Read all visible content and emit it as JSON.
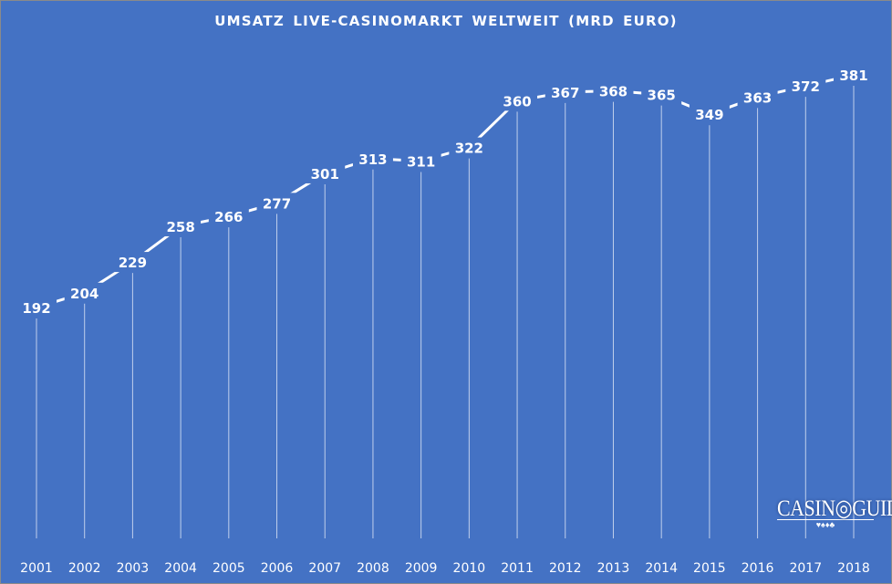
{
  "chart_data": {
    "type": "line",
    "title": "UMSATZ  LIVE-CASINOMARKT  WELTWEIT  (MRD EURO)",
    "categories": [
      "2001",
      "2002",
      "2003",
      "2004",
      "2005",
      "2006",
      "2007",
      "2008",
      "2009",
      "2010",
      "2011",
      "2012",
      "2013",
      "2014",
      "2015",
      "2016",
      "2017",
      "2018"
    ],
    "values": [
      192,
      204,
      229,
      258,
      266,
      277,
      301,
      313,
      311,
      322,
      360,
      367,
      368,
      365,
      349,
      363,
      372,
      381
    ],
    "ylim": [
      0,
      400
    ],
    "grid": false,
    "drop_lines": true,
    "data_labels": true,
    "colors": {
      "background": "#4472C4",
      "line": "#FFFFFF",
      "text": "#FFFFFF"
    }
  },
  "logo": {
    "text": "CASINOGUIDE",
    "suits": "♥♠♦♣"
  }
}
